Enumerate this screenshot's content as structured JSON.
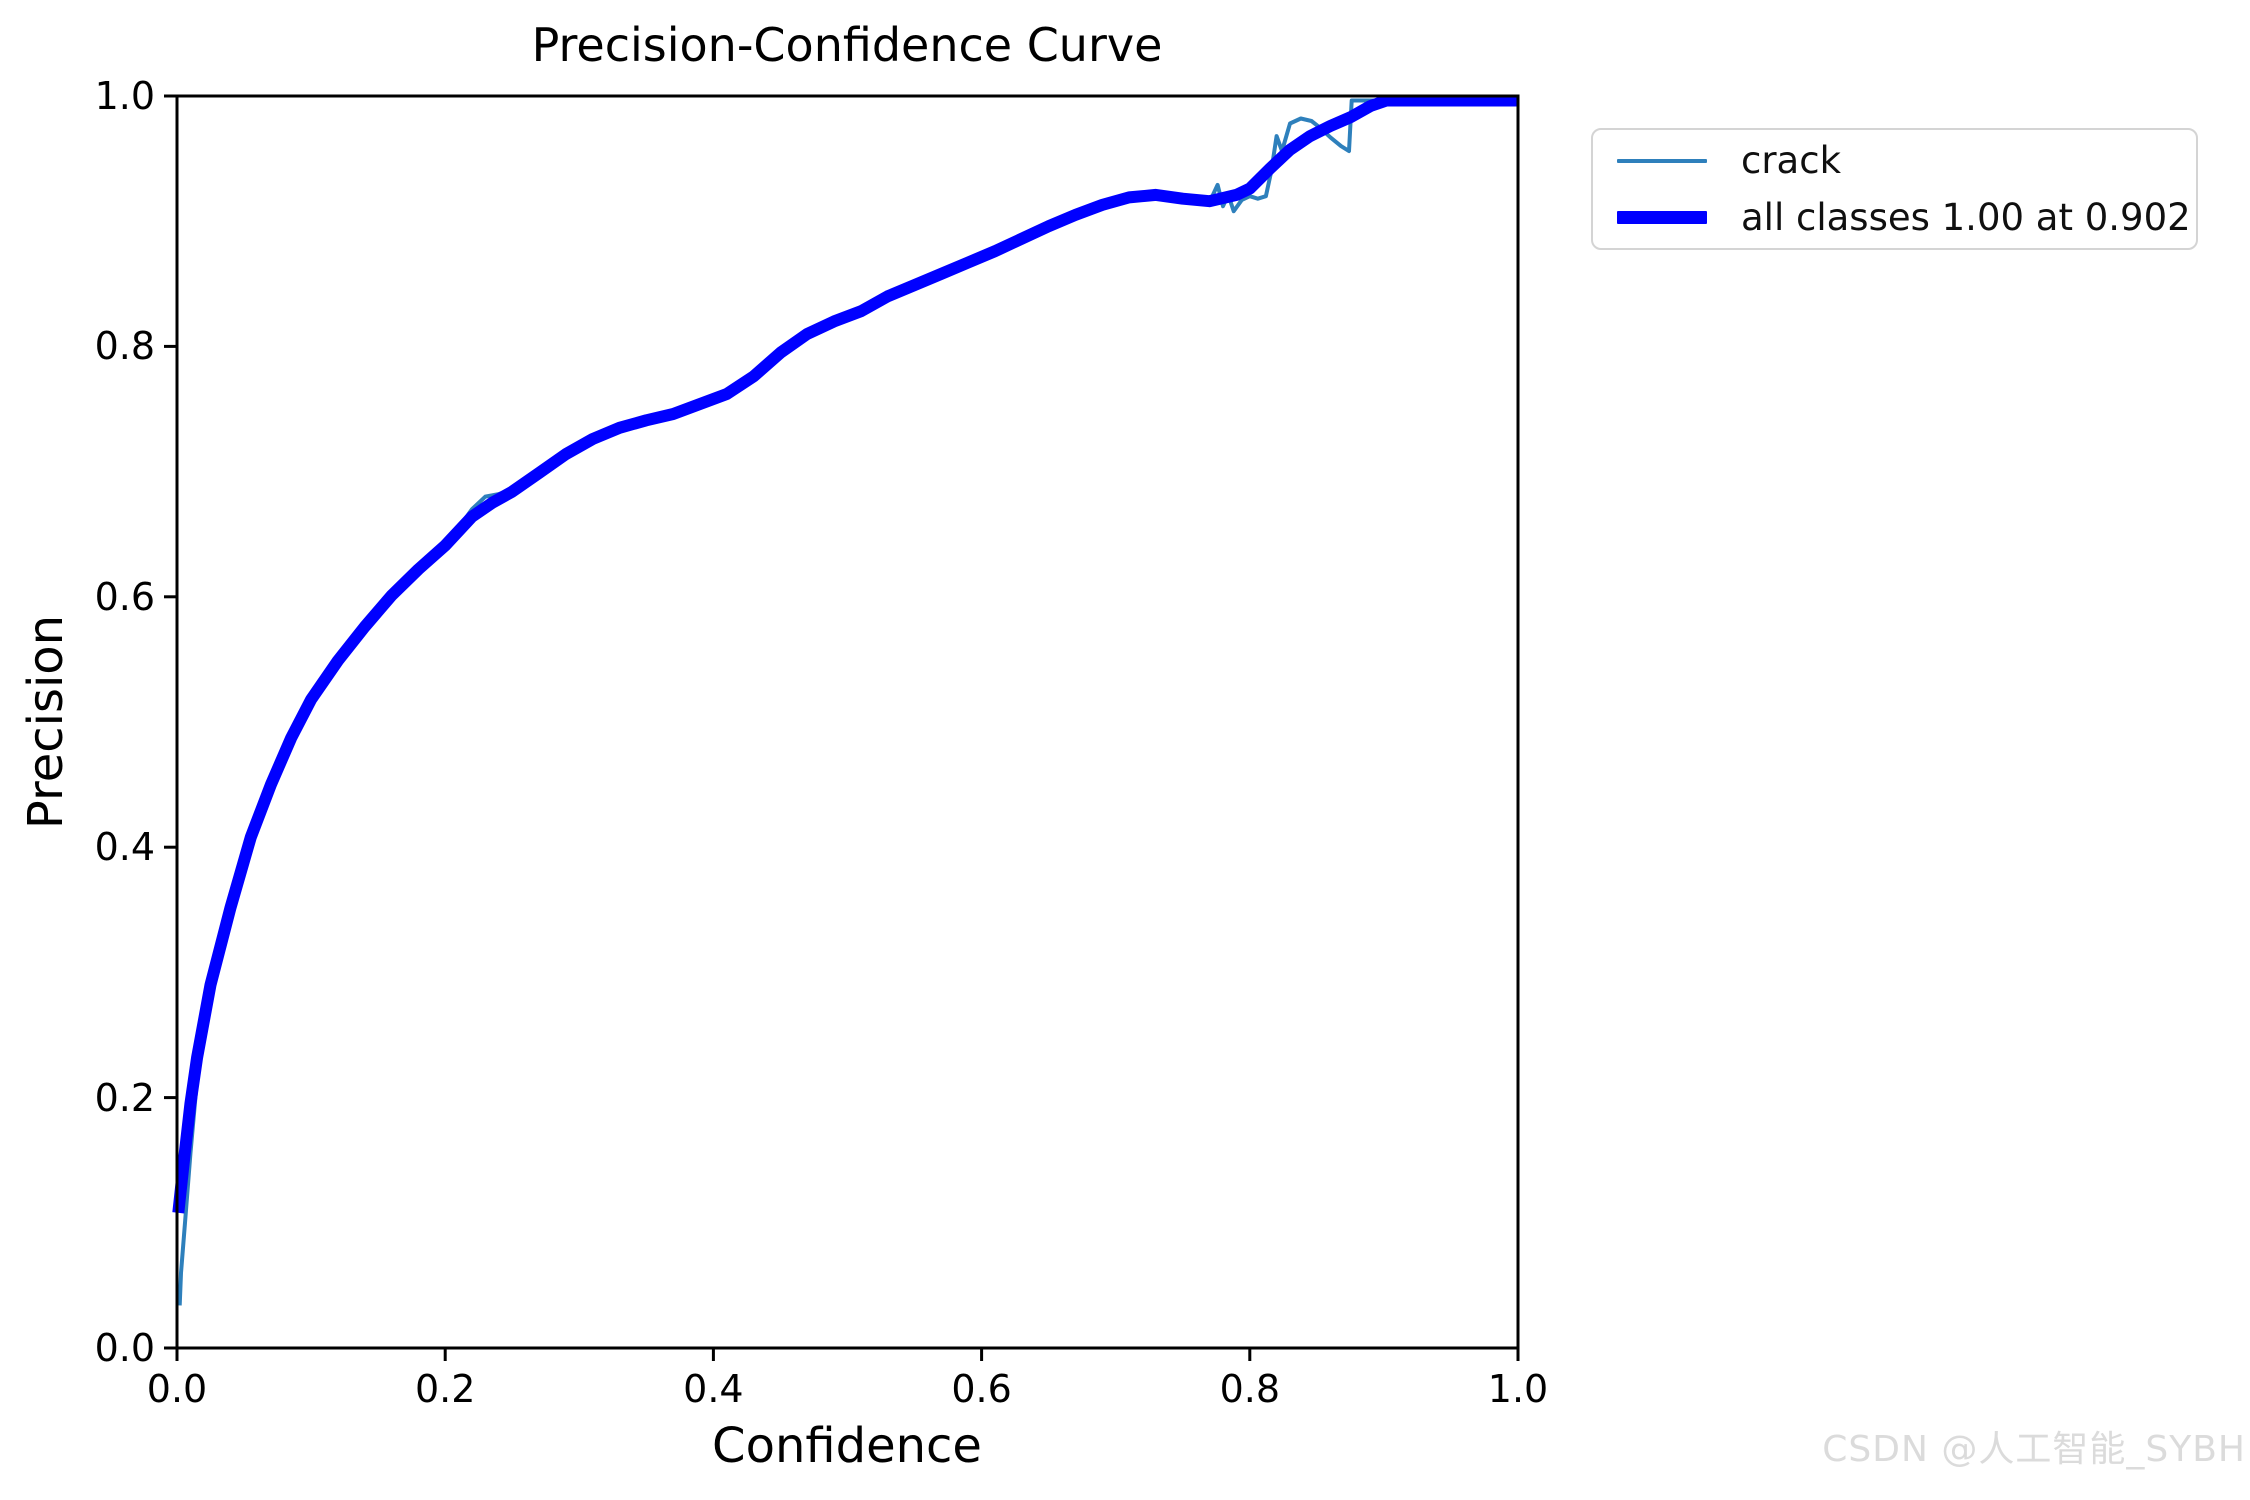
{
  "figure": {
    "title": "Precision-Confidence Curve",
    "watermark": "CSDN @人工智能_SYBH"
  },
  "chart_data": {
    "type": "line",
    "title": "Precision-Confidence Curve",
    "xlabel": "Confidence",
    "ylabel": "Precision",
    "xlim": [
      0.0,
      1.0
    ],
    "ylim": [
      0.0,
      1.0
    ],
    "xticks": [
      0.0,
      0.2,
      0.4,
      0.6,
      0.8,
      1.0
    ],
    "yticks": [
      0.0,
      0.2,
      0.4,
      0.6,
      0.8,
      1.0
    ],
    "grid": false,
    "axis_color": "#000000",
    "legend": {
      "position": "outside-upper-right",
      "entries": [
        {
          "label": "crack",
          "color": "#2E80BC",
          "line_width": 4
        },
        {
          "label": "all classes 1.00 at 0.902",
          "color": "#0000FF",
          "line_width": 12
        }
      ]
    },
    "annotations": {
      "max_precision": 1.0,
      "at_confidence": 0.902
    },
    "series": [
      {
        "name": "crack",
        "color": "#2E80BC",
        "line_width": 4,
        "points": [
          [
            0.002,
            0.034
          ],
          [
            0.003,
            0.06
          ],
          [
            0.006,
            0.1
          ],
          [
            0.01,
            0.155
          ],
          [
            0.015,
            0.215
          ],
          [
            0.025,
            0.285
          ],
          [
            0.04,
            0.352
          ],
          [
            0.055,
            0.408
          ],
          [
            0.07,
            0.45
          ],
          [
            0.085,
            0.487
          ],
          [
            0.1,
            0.518
          ],
          [
            0.12,
            0.549
          ],
          [
            0.14,
            0.576
          ],
          [
            0.16,
            0.601
          ],
          [
            0.18,
            0.622
          ],
          [
            0.2,
            0.643
          ],
          [
            0.21,
            0.655
          ],
          [
            0.22,
            0.67
          ],
          [
            0.23,
            0.68
          ],
          [
            0.24,
            0.682
          ],
          [
            0.25,
            0.686
          ],
          [
            0.27,
            0.7
          ],
          [
            0.29,
            0.716
          ],
          [
            0.31,
            0.728
          ],
          [
            0.33,
            0.737
          ],
          [
            0.35,
            0.743
          ],
          [
            0.37,
            0.748
          ],
          [
            0.39,
            0.756
          ],
          [
            0.41,
            0.764
          ],
          [
            0.43,
            0.778
          ],
          [
            0.45,
            0.797
          ],
          [
            0.47,
            0.812
          ],
          [
            0.49,
            0.822
          ],
          [
            0.51,
            0.83
          ],
          [
            0.53,
            0.842
          ],
          [
            0.55,
            0.851
          ],
          [
            0.57,
            0.86
          ],
          [
            0.59,
            0.869
          ],
          [
            0.61,
            0.878
          ],
          [
            0.63,
            0.888
          ],
          [
            0.65,
            0.898
          ],
          [
            0.67,
            0.907
          ],
          [
            0.69,
            0.915
          ],
          [
            0.71,
            0.92
          ],
          [
            0.73,
            0.922
          ],
          [
            0.75,
            0.919
          ],
          [
            0.765,
            0.916
          ],
          [
            0.772,
            0.92
          ],
          [
            0.776,
            0.929
          ],
          [
            0.78,
            0.912
          ],
          [
            0.784,
            0.921
          ],
          [
            0.788,
            0.908
          ],
          [
            0.794,
            0.917
          ],
          [
            0.8,
            0.92
          ],
          [
            0.806,
            0.918
          ],
          [
            0.812,
            0.92
          ],
          [
            0.816,
            0.94
          ],
          [
            0.82,
            0.968
          ],
          [
            0.824,
            0.956
          ],
          [
            0.83,
            0.978
          ],
          [
            0.838,
            0.982
          ],
          [
            0.846,
            0.98
          ],
          [
            0.852,
            0.975
          ],
          [
            0.86,
            0.967
          ],
          [
            0.868,
            0.96
          ],
          [
            0.874,
            0.956
          ],
          [
            0.876,
            1.0
          ],
          [
            0.9,
            1.0
          ],
          [
            1.0,
            1.0
          ]
        ]
      },
      {
        "name": "all classes 1.00 at 0.902",
        "color": "#0000FF",
        "line_width": 12,
        "points": [
          [
            0.001,
            0.108
          ],
          [
            0.005,
            0.148
          ],
          [
            0.01,
            0.195
          ],
          [
            0.015,
            0.232
          ],
          [
            0.025,
            0.29
          ],
          [
            0.04,
            0.352
          ],
          [
            0.055,
            0.408
          ],
          [
            0.07,
            0.45
          ],
          [
            0.085,
            0.487
          ],
          [
            0.1,
            0.518
          ],
          [
            0.12,
            0.549
          ],
          [
            0.14,
            0.576
          ],
          [
            0.16,
            0.601
          ],
          [
            0.18,
            0.622
          ],
          [
            0.2,
            0.641
          ],
          [
            0.22,
            0.664
          ],
          [
            0.235,
            0.675
          ],
          [
            0.25,
            0.684
          ],
          [
            0.27,
            0.699
          ],
          [
            0.29,
            0.714
          ],
          [
            0.31,
            0.726
          ],
          [
            0.33,
            0.735
          ],
          [
            0.35,
            0.741
          ],
          [
            0.37,
            0.746
          ],
          [
            0.39,
            0.754
          ],
          [
            0.41,
            0.762
          ],
          [
            0.43,
            0.776
          ],
          [
            0.45,
            0.795
          ],
          [
            0.47,
            0.81
          ],
          [
            0.49,
            0.82
          ],
          [
            0.51,
            0.828
          ],
          [
            0.53,
            0.84
          ],
          [
            0.55,
            0.849
          ],
          [
            0.57,
            0.858
          ],
          [
            0.59,
            0.867
          ],
          [
            0.61,
            0.876
          ],
          [
            0.63,
            0.886
          ],
          [
            0.65,
            0.896
          ],
          [
            0.67,
            0.905
          ],
          [
            0.69,
            0.913
          ],
          [
            0.71,
            0.919
          ],
          [
            0.73,
            0.921
          ],
          [
            0.75,
            0.918
          ],
          [
            0.77,
            0.916
          ],
          [
            0.79,
            0.921
          ],
          [
            0.8,
            0.926
          ],
          [
            0.815,
            0.942
          ],
          [
            0.83,
            0.957
          ],
          [
            0.845,
            0.968
          ],
          [
            0.86,
            0.976
          ],
          [
            0.875,
            0.983
          ],
          [
            0.89,
            0.992
          ],
          [
            0.902,
            1.0
          ],
          [
            0.95,
            1.0
          ],
          [
            1.0,
            1.0
          ]
        ]
      }
    ]
  }
}
